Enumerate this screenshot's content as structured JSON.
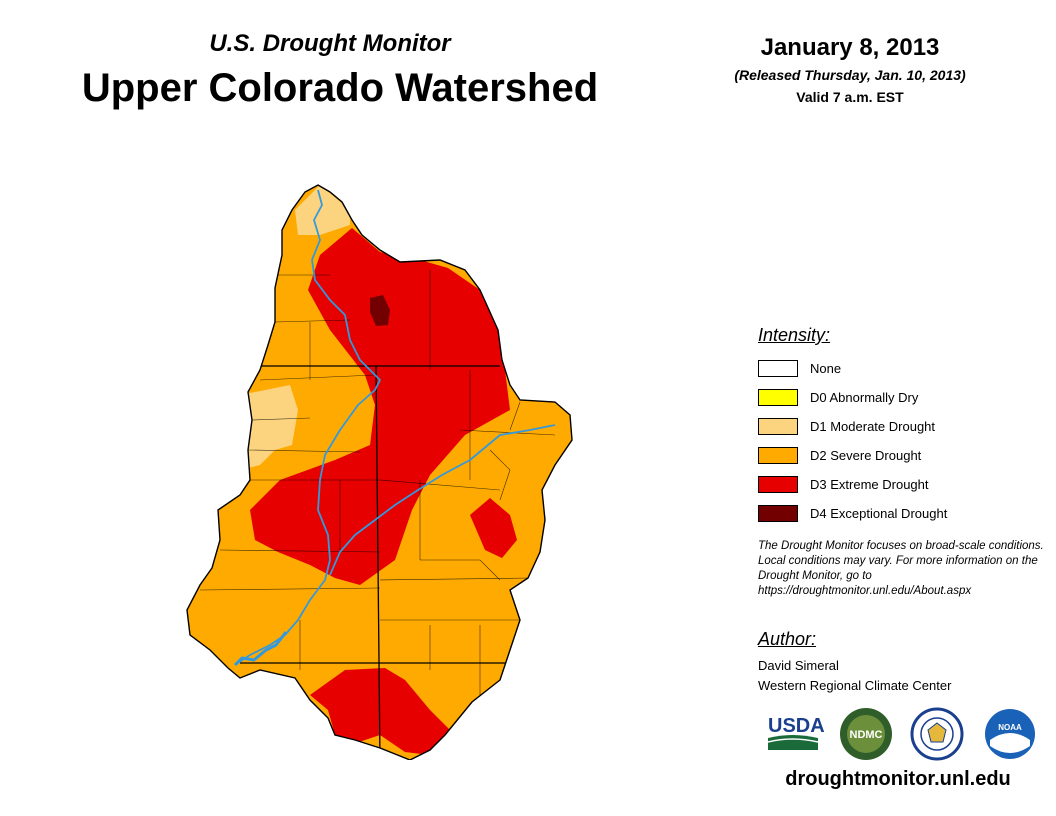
{
  "header": {
    "subtitle": "U.S. Drought Monitor",
    "title": "Upper Colorado Watershed",
    "date": "January 8, 2013",
    "released": "(Released Thursday, Jan. 10, 2013)",
    "valid": "Valid 7 a.m. EST"
  },
  "legend": {
    "title": "Intensity:",
    "items": [
      {
        "label": "None",
        "color": "#ffffff"
      },
      {
        "label": "D0 Abnormally Dry",
        "color": "#ffff00"
      },
      {
        "label": "D1 Moderate Drought",
        "color": "#fcd37f"
      },
      {
        "label": "D2 Severe Drought",
        "color": "#ffaa00"
      },
      {
        "label": "D3 Extreme Drought",
        "color": "#e60000"
      },
      {
        "label": "D4 Exceptional Drought",
        "color": "#730000"
      }
    ]
  },
  "note": "The Drought Monitor focuses on broad-scale conditions. Local conditions may vary. For more information on the Drought Monitor, go to https://droughtmonitor.unl.edu/About.aspx",
  "author": {
    "title": "Author:",
    "name": "David Simeral",
    "org": "Western Regional Climate Center"
  },
  "logos": {
    "usda": "USDA",
    "ndmc": "NDMC",
    "noaa": "NOAA"
  },
  "site": "droughtmonitor.unl.edu",
  "colors": {
    "river": "#3399dd",
    "boundary": "#000000"
  }
}
